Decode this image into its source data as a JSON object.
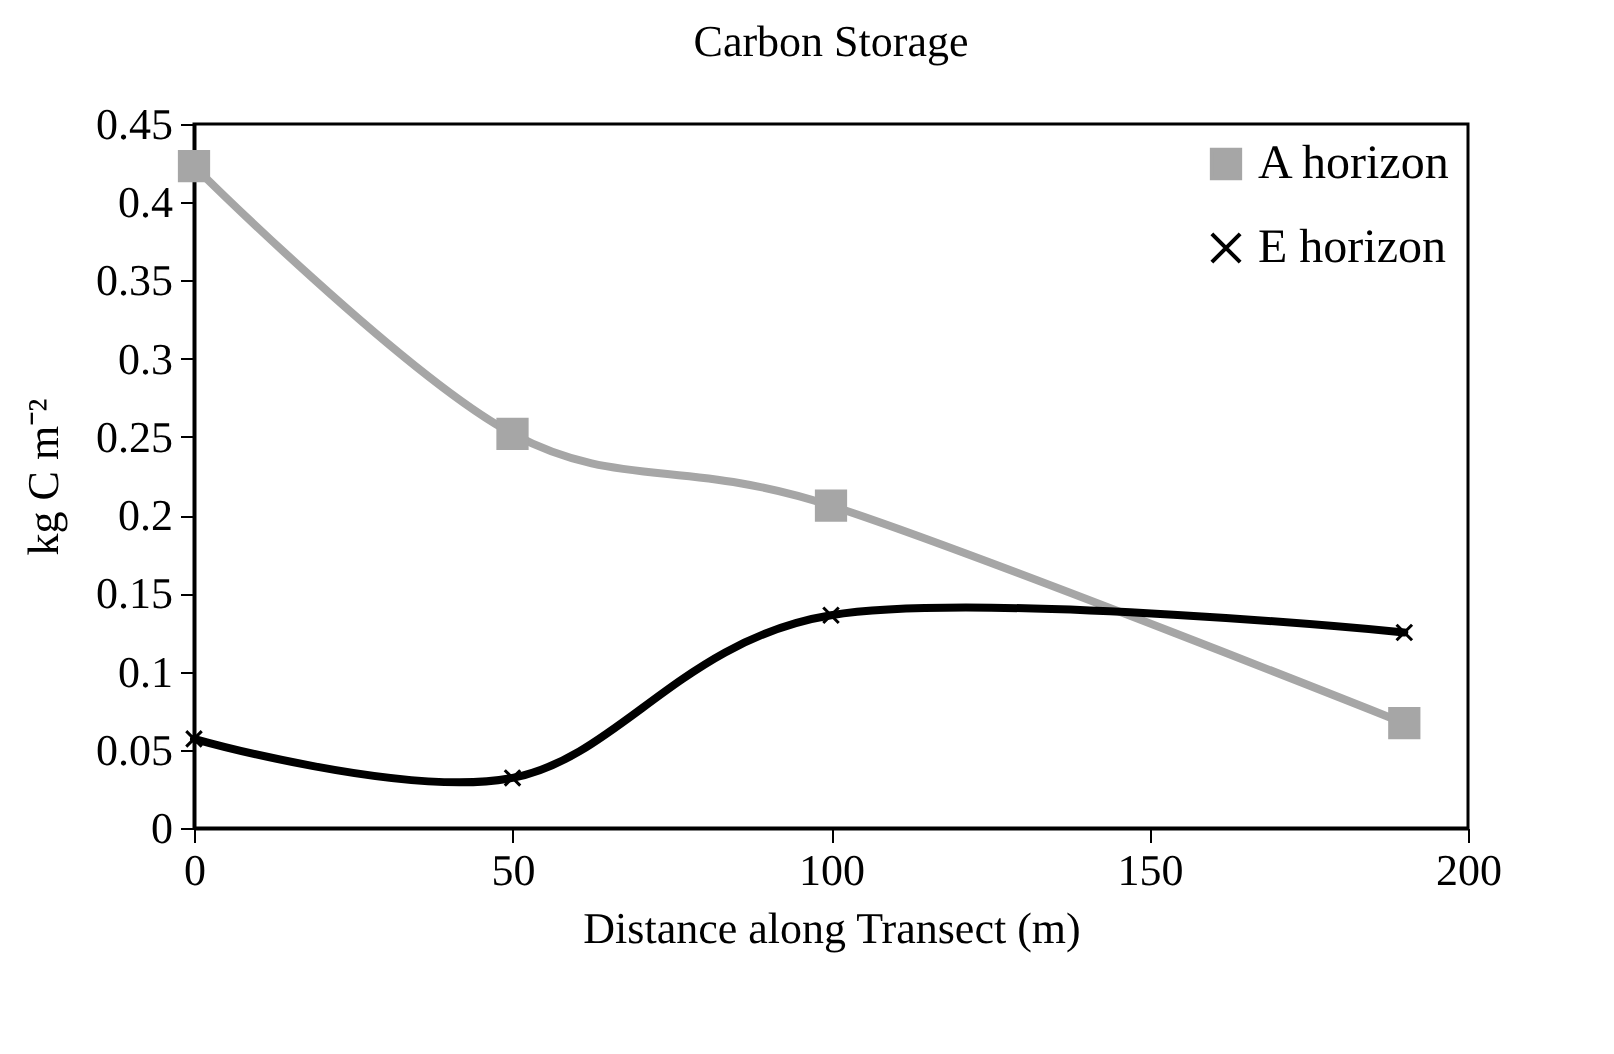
{
  "chart_data": {
    "type": "line",
    "title": "Carbon Storage",
    "xlabel": "Distance along Transect (m)",
    "ylabel": "kg C m⁻²",
    "x": [
      0,
      50,
      100,
      190
    ],
    "series": [
      {
        "name": "A horizon",
        "color": "#a6a6a6",
        "marker": "square",
        "values": [
          0.423,
          0.252,
          0.206,
          0.067
        ]
      },
      {
        "name": "E horizon",
        "color": "#000000",
        "marker": "cross",
        "values": [
          0.057,
          0.032,
          0.136,
          0.125
        ]
      }
    ],
    "xlim": [
      0,
      200
    ],
    "xticks": [
      0,
      50,
      100,
      150,
      200
    ],
    "ylim": [
      0,
      0.45
    ],
    "yticks": [
      0,
      0.05,
      0.1,
      0.15,
      0.2,
      0.25,
      0.3,
      0.35,
      0.4,
      0.45
    ],
    "grid": false,
    "legend": "top right",
    "line_style": "solid"
  }
}
